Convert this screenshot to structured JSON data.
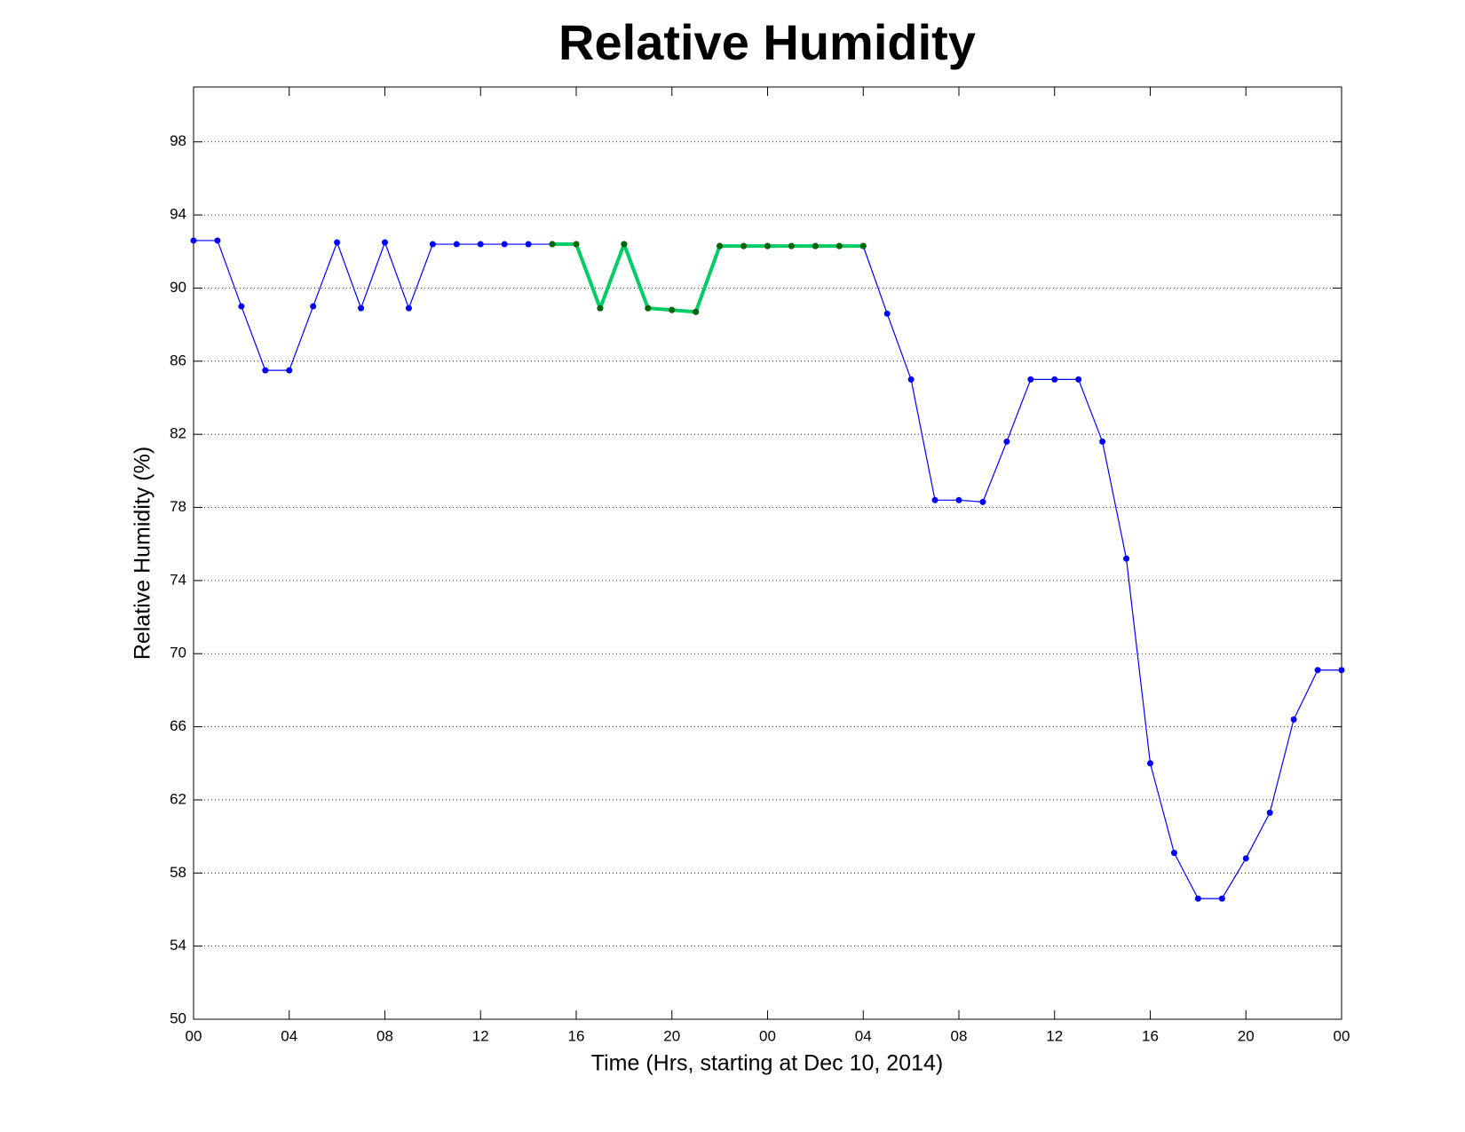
{
  "chart_data": {
    "type": "line",
    "title": "Relative Humidity",
    "x_label": "Time (Hrs, starting at Dec 10, 2014)",
    "y_label": "Relative Humidity (%)",
    "x": [
      0,
      1,
      2,
      3,
      4,
      5,
      6,
      7,
      8,
      9,
      10,
      11,
      12,
      13,
      14,
      15,
      16,
      17,
      18,
      19,
      20,
      21,
      22,
      23,
      24,
      25,
      26,
      27,
      28,
      29,
      30,
      31,
      32,
      33,
      34,
      35,
      36,
      37,
      38,
      39,
      40,
      41,
      42,
      43,
      44,
      45,
      46,
      47,
      48
    ],
    "series": [
      {
        "color": "#0000ff",
        "marker_color": "#0000ff",
        "width": 1.2,
        "values": [
          92.6,
          92.6,
          89.0,
          85.5,
          85.5,
          89.0,
          92.5,
          88.9,
          92.5,
          88.9,
          92.4,
          92.4,
          92.4,
          92.4,
          92.4,
          92.4,
          92.4,
          88.9,
          92.4,
          88.9,
          88.8,
          88.7,
          92.3,
          92.3,
          92.3,
          92.3,
          92.3,
          92.3,
          92.3,
          88.6,
          85.0,
          78.4,
          78.4,
          78.3,
          81.6,
          85.0,
          85.0,
          85.0,
          81.6,
          75.2,
          64.0,
          59.1,
          56.6,
          56.6,
          58.8,
          61.3,
          66.4,
          69.1,
          69.1
        ]
      },
      {
        "color": "#00cc66",
        "marker_color": "#006600",
        "width": 4,
        "values": [
          null,
          null,
          null,
          null,
          null,
          null,
          null,
          null,
          null,
          null,
          null,
          null,
          null,
          null,
          null,
          92.4,
          92.4,
          88.9,
          92.4,
          88.9,
          88.8,
          88.7,
          92.3,
          92.3,
          92.3,
          92.3,
          92.3,
          92.3,
          92.3,
          null,
          null,
          null,
          null,
          null,
          null,
          null,
          null,
          null,
          null,
          null,
          null,
          null,
          null,
          null,
          null,
          null,
          null,
          null,
          null
        ]
      }
    ],
    "xlim": [
      0,
      48
    ],
    "xticks": [
      {
        "value": 0,
        "label": "00"
      },
      {
        "value": 4,
        "label": "04"
      },
      {
        "value": 8,
        "label": "08"
      },
      {
        "value": 12,
        "label": "12"
      },
      {
        "value": 16,
        "label": "16"
      },
      {
        "value": 20,
        "label": "20"
      },
      {
        "value": 24,
        "label": "00"
      },
      {
        "value": 28,
        "label": "04"
      },
      {
        "value": 32,
        "label": "08"
      },
      {
        "value": 36,
        "label": "12"
      },
      {
        "value": 40,
        "label": "16"
      },
      {
        "value": 44,
        "label": "20"
      },
      {
        "value": 48,
        "label": "00"
      }
    ],
    "ylim": [
      50,
      101
    ],
    "yticks": [
      50,
      54,
      58,
      62,
      66,
      70,
      74,
      78,
      82,
      86,
      90,
      94,
      98
    ],
    "grid": true
  }
}
